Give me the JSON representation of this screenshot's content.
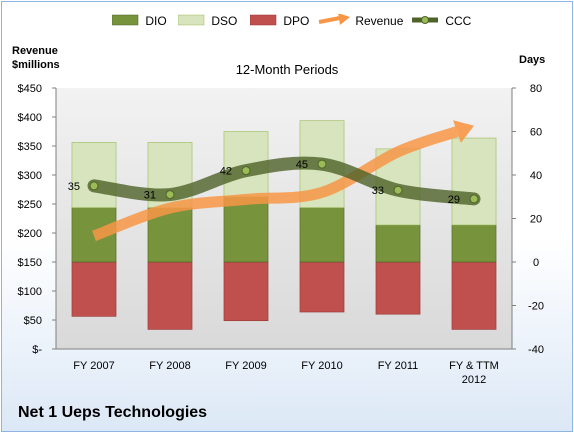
{
  "chart_data": {
    "type": "bar",
    "title": "12-Month Periods",
    "company": "Net 1 Ueps Technologies",
    "left_axis_label": "Revenue\n$millions",
    "right_axis_label": "Days",
    "categories": [
      "FY 2007",
      "FY 2008",
      "FY 2009",
      "FY 2010",
      "FY 2011",
      "FY & TTM 2012"
    ],
    "left_axis": {
      "min": 0,
      "max": 450,
      "step": 50,
      "tick_labels": [
        "$-",
        "$50",
        "$100",
        "$150",
        "$200",
        "$250",
        "$300",
        "$350",
        "$400",
        "$450"
      ]
    },
    "right_axis": {
      "min": -40,
      "max": 80,
      "step": 20,
      "tick_labels": [
        "-40",
        "-20",
        "0",
        "20",
        "40",
        "60",
        "80"
      ]
    },
    "series": [
      {
        "name": "DIO",
        "kind": "stacked-bar",
        "axis": "days",
        "values": [
          25,
          25,
          30,
          25,
          17,
          17
        ],
        "color": "#77933c"
      },
      {
        "name": "DSO",
        "kind": "stacked-bar",
        "axis": "days",
        "values": [
          30,
          30,
          30,
          40,
          35,
          40
        ],
        "color": "#d7e4bd"
      },
      {
        "name": "DPO",
        "kind": "stacked-bar-negative",
        "axis": "days",
        "values": [
          -25,
          -31,
          -27,
          -23,
          -24,
          -31
        ],
        "color": "#c0504d"
      },
      {
        "name": "Revenue",
        "kind": "arrow-line",
        "axis": "revenue",
        "values": [
          195,
          243,
          258,
          270,
          340,
          385
        ],
        "color": "#f79646"
      },
      {
        "name": "CCC",
        "kind": "line",
        "axis": "days",
        "values": [
          35,
          31,
          42,
          45,
          33,
          29
        ],
        "labels": [
          "35",
          "31",
          "42",
          "45",
          "33",
          "29"
        ],
        "color": "#4f6228"
      }
    ],
    "legend_position": "top",
    "grid": false
  }
}
